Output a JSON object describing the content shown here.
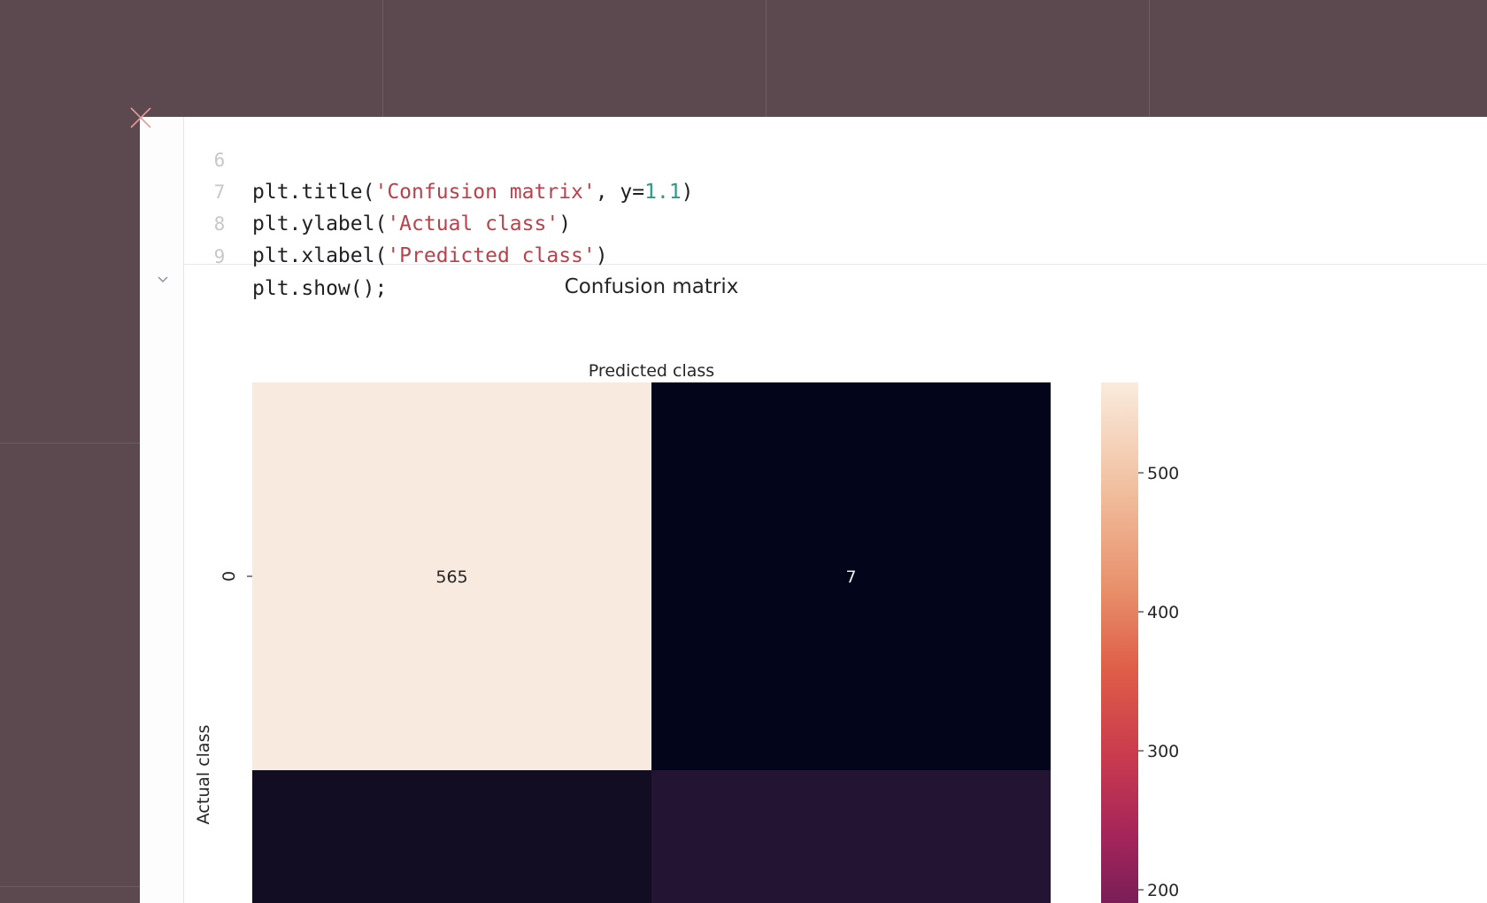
{
  "code": {
    "lines": [
      {
        "n": "6",
        "pre": "plt.title(",
        "str": "'Confusion matrix'",
        "mid": ", y=",
        "num": "1.1",
        "post": ")"
      },
      {
        "n": "7",
        "pre": "plt.ylabel(",
        "str": "'Actual class'",
        "post": ")"
      },
      {
        "n": "8",
        "pre": "plt.xlabel(",
        "str": "'Predicted class'",
        "post": ")"
      },
      {
        "n": "9",
        "pre": "plt.show();"
      }
    ]
  },
  "icons": {
    "close": "close-x-icon",
    "collapse": "chevron-down-icon"
  },
  "chart_data": {
    "type": "heatmap",
    "title": "Confusion matrix",
    "xlabel": "Predicted class",
    "ylabel": "Actual class",
    "y_tick_labels": [
      "0"
    ],
    "cells": [
      {
        "row": 0,
        "col": 0,
        "value": 565,
        "label": "565",
        "color": "#f8eade"
      },
      {
        "row": 0,
        "col": 1,
        "value": 7,
        "label": "7",
        "color": "#03051a"
      },
      {
        "row": 1,
        "col": 0,
        "color": "#120d22"
      },
      {
        "row": 1,
        "col": 1,
        "color": "#221432"
      }
    ],
    "colorbar": {
      "colormap": "rocket",
      "ticks": [
        500,
        400,
        300,
        200
      ],
      "max": 565
    }
  }
}
